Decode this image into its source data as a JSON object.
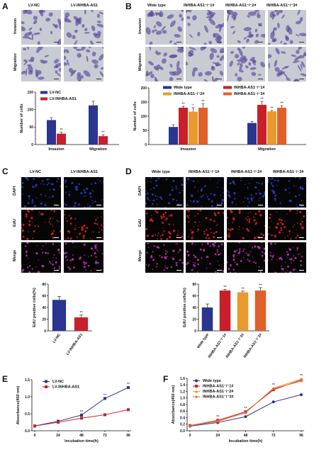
{
  "panels": {
    "A": {
      "letter": "A",
      "col_labels": [
        "LV-NC",
        "LV-INHBA-AS1"
      ],
      "row_labels": [
        "Invasion",
        "Migration"
      ]
    },
    "B": {
      "letter": "B",
      "col_labels": [
        "Wide type",
        "INHBA-AS1⁻/⁻1#",
        "INHBA-AS1⁻/⁻2#",
        "INHBA-AS1⁻/⁻3#"
      ],
      "row_labels": [
        "Invasion",
        "Migration"
      ]
    },
    "C": {
      "letter": "C",
      "col_labels": [
        "LV-NC",
        "LV-INHBA-AS1"
      ],
      "row_labels": [
        "DAPI",
        "EdU",
        "Merge"
      ]
    },
    "D": {
      "letter": "D",
      "col_labels": [
        "Wide type",
        "INHBA-AS1⁻/⁻1#",
        "INHBA-AS1⁻/⁻2#",
        "INHBA-AS1⁻/⁻3#"
      ],
      "row_labels": [
        "DAPI",
        "EdU",
        "Merge"
      ]
    },
    "E": {
      "letter": "E"
    },
    "F": {
      "letter": "F"
    }
  },
  "colors": {
    "navy": "#2a3590",
    "red": "#c8202a",
    "orange": "#e89a2c",
    "orange2": "#e0602a",
    "micro_bg": "#c9cbd2",
    "cell_purple": "#5b4aa0",
    "dapi": "#2240c8",
    "edu": "#d82020",
    "merge": "#c030b0"
  },
  "chart_data": [
    {
      "id": "A",
      "type": "bar",
      "categories": [
        "Invasion",
        "Migration"
      ],
      "series": [
        {
          "name": "LV-NC",
          "values": [
            70,
            112
          ],
          "errors": [
            7,
            12
          ],
          "color": "#2a3590"
        },
        {
          "name": "LV-INHBA-AS1",
          "values": [
            31,
            24
          ],
          "errors": [
            4,
            4
          ],
          "color": "#c8202a"
        }
      ],
      "sig": [
        [
          "",
          "**"
        ],
        [
          "",
          "**"
        ]
      ],
      "ylabel": "Number of cells",
      "ylim": [
        0,
        150
      ],
      "yticks": [
        0,
        50,
        100,
        150
      ],
      "legend": "top-left"
    },
    {
      "id": "B",
      "type": "bar",
      "categories": [
        "Invasion",
        "Migration"
      ],
      "series": [
        {
          "name": "Wide type",
          "values": [
            62,
            76
          ],
          "errors": [
            8,
            6
          ],
          "color": "#2a3590"
        },
        {
          "name": "INHBA-AS1⁻/⁻1#",
          "values": [
            130,
            140
          ],
          "errors": [
            5,
            12
          ],
          "color": "#c8202a"
        },
        {
          "name": "INHBA-AS1⁻/⁻2#",
          "values": [
            116,
            117
          ],
          "errors": [
            14,
            3
          ],
          "color": "#e89a2c"
        },
        {
          "name": "INHBA-AS1⁻/⁻3#",
          "values": [
            130,
            130
          ],
          "errors": [
            14,
            7
          ],
          "color": "#e0602a"
        }
      ],
      "sig": [
        [
          "",
          "**",
          "*",
          "**"
        ],
        [
          "",
          "**",
          "**",
          "**"
        ]
      ],
      "ylabel": "Number of cells",
      "ylim": [
        0,
        200
      ],
      "yticks": [
        0,
        50,
        100,
        150,
        200
      ],
      "legend": "top"
    },
    {
      "id": "C",
      "type": "bar",
      "categories": [
        "LV-NC",
        "LV-INHBA-AS1"
      ],
      "values": [
        53,
        23
      ],
      "errors": [
        6,
        4
      ],
      "colors": [
        "#2a3590",
        "#c8202a"
      ],
      "sig": [
        "",
        "**"
      ],
      "ylabel": "EdU positive cells(%)",
      "ylim": [
        0,
        80
      ],
      "yticks": [
        0,
        20,
        40,
        60,
        80
      ]
    },
    {
      "id": "D",
      "type": "bar",
      "categories": [
        "Wide type",
        "INHBA-AS1⁻/⁻1#",
        "INHBA-AS1⁻/⁻2#",
        "INHBA-AS1⁻/⁻3#"
      ],
      "values": [
        40,
        69,
        66,
        69
      ],
      "errors": [
        6,
        2,
        2,
        5
      ],
      "colors": [
        "#2a3590",
        "#c8202a",
        "#e89a2c",
        "#e0602a"
      ],
      "sig": [
        "",
        "**",
        "**",
        "**"
      ],
      "ylabel": "EdU positive cells(%)",
      "ylim": [
        0,
        80
      ],
      "yticks": [
        0,
        20,
        40,
        60,
        80
      ]
    },
    {
      "id": "E",
      "type": "line",
      "x": [
        0,
        24,
        48,
        72,
        96
      ],
      "series": [
        {
          "name": "LV-NC",
          "values": [
            0.14,
            0.28,
            0.46,
            0.95,
            1.27
          ],
          "color": "#2a3590",
          "marker": "square"
        },
        {
          "name": "LV-INHBA-AS1",
          "values": [
            0.14,
            0.25,
            0.37,
            0.47,
            0.62
          ],
          "color": "#c8202a",
          "marker": "square"
        }
      ],
      "sig": [
        "",
        "",
        "**",
        "**",
        "**"
      ],
      "xlabel": "Incubation time(h)",
      "ylabel": "Absorbance(450 nm)",
      "xticks": [
        0,
        24,
        48,
        72,
        96
      ],
      "ylim": [
        0,
        1.5
      ],
      "yticks": [
        0.0,
        0.5,
        1.0,
        1.5
      ],
      "legend": "top-left"
    },
    {
      "id": "F",
      "type": "line",
      "x": [
        0,
        24,
        48,
        72,
        96
      ],
      "series": [
        {
          "name": "Wide type",
          "values": [
            0.14,
            0.25,
            0.43,
            0.88,
            1.1
          ],
          "color": "#2a3590",
          "marker": "circle"
        },
        {
          "name": "INHBA-AS1⁻/⁻1#",
          "values": [
            0.16,
            0.32,
            0.58,
            1.25,
            1.55
          ],
          "color": "#c8202a",
          "marker": "square"
        },
        {
          "name": "INHBA-AS1⁻/⁻2#",
          "values": [
            0.16,
            0.3,
            0.55,
            1.3,
            1.58
          ],
          "color": "#e89a2c",
          "marker": "triangle"
        },
        {
          "name": "INHBA-AS1⁻/⁻3#",
          "values": [
            0.16,
            0.28,
            0.56,
            1.28,
            1.52
          ],
          "color": "#e0602a",
          "marker": "diamond"
        }
      ],
      "sig": [
        "",
        "**",
        "**",
        "**",
        "**"
      ],
      "xlabel": "Incubation time(h)",
      "ylabel": "Absorbance(450 nm)",
      "xticks": [
        0,
        24,
        48,
        72,
        96
      ],
      "ylim": [
        0,
        1.6
      ],
      "yticks": [
        0.0,
        0.2,
        0.4,
        0.6,
        0.8,
        1.0,
        1.2,
        1.4,
        1.6
      ],
      "legend": "top-left"
    }
  ]
}
